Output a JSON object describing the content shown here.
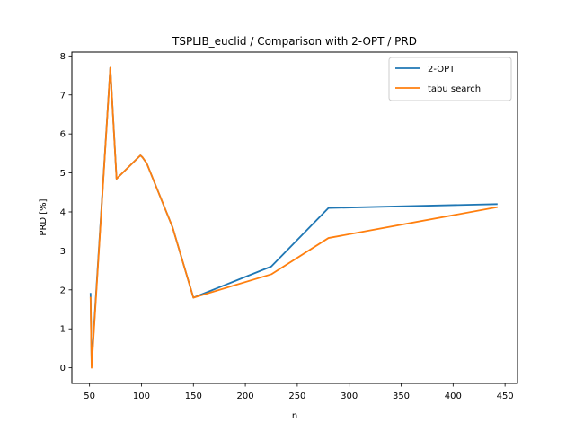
{
  "chart_data": {
    "type": "line",
    "title": "TSPLIB_euclid / Comparison with 2-OPT / PRD",
    "xlabel": "n",
    "ylabel": "PRD [%]",
    "xlim": [
      33,
      462
    ],
    "ylim": [
      -0.4,
      8.1
    ],
    "xticks": [
      50,
      100,
      150,
      200,
      250,
      300,
      350,
      400,
      450
    ],
    "yticks": [
      0,
      1,
      2,
      3,
      4,
      5,
      6,
      7,
      8
    ],
    "grid": false,
    "legend_position": "top-right",
    "series": [
      {
        "name": "2-OPT",
        "color": "#1f77b4",
        "x": [
          51,
          52,
          70,
          76,
          99,
          101,
          105,
          130,
          150,
          225,
          280,
          442
        ],
        "y": [
          1.9,
          0.1,
          7.7,
          4.85,
          5.45,
          5.4,
          5.25,
          3.6,
          1.8,
          2.6,
          4.1,
          4.2
        ]
      },
      {
        "name": "tabu search",
        "color": "#ff7f0e",
        "x": [
          51,
          52,
          70,
          76,
          99,
          101,
          105,
          130,
          150,
          225,
          280,
          442
        ],
        "y": [
          1.8,
          0.0,
          7.7,
          4.85,
          5.45,
          5.4,
          5.25,
          3.6,
          1.8,
          2.4,
          3.33,
          4.12
        ]
      }
    ]
  }
}
